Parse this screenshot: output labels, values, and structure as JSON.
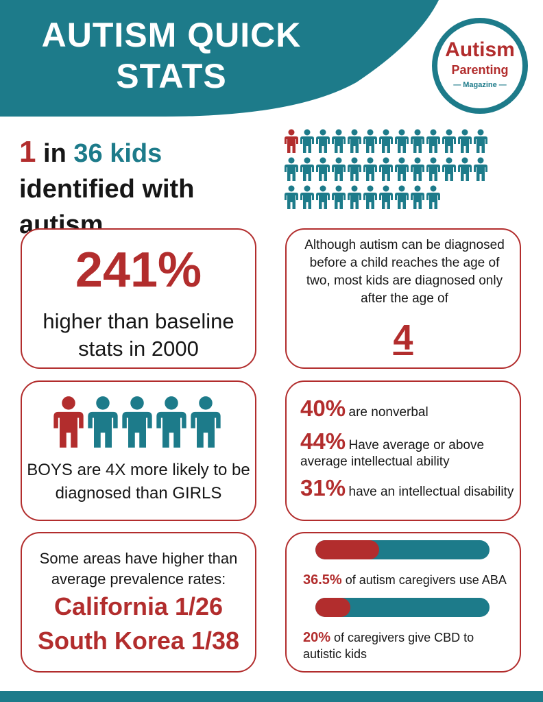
{
  "header": {
    "title_line1": "AUTISM QUICK",
    "title_line2": "STATS",
    "colors": {
      "teal": "#1d7b8a",
      "red": "#b22d2d"
    }
  },
  "logo": {
    "line1": "Autism",
    "line2": "Parenting",
    "line3": "— Magazine —"
  },
  "headline": {
    "num": "1",
    "in": " in ",
    "kids": "36 kids",
    "rest": " identified with autism"
  },
  "people_grid": {
    "total": 36,
    "highlighted": 1,
    "icon": "person-icon"
  },
  "card_baseline": {
    "percent": "241%",
    "subtitle": "higher than baseline stats in 2000"
  },
  "card_age": {
    "text": "Although autism can be diagnosed before a child reaches the age of two, most kids are diagnosed only after the age of",
    "age": "4"
  },
  "card_gender": {
    "text": "BOYS are 4X more likely to be diagnosed than GIRLS",
    "icon": "person-icon"
  },
  "card_stats": {
    "items": [
      {
        "num": "40%",
        "text": "are nonverbal"
      },
      {
        "num": "44%",
        "text": "Have average or above"
      },
      {
        "num": "",
        "text": "average intellectual ability"
      },
      {
        "num": "31%",
        "text": "have an intellectual disability"
      }
    ]
  },
  "card_regions": {
    "text": "Some areas have higher than average prevalence rates:",
    "regions": [
      "California 1/26",
      "South Korea 1/38"
    ]
  },
  "card_caregivers": {
    "bars": [
      {
        "pct": "36.5%",
        "label": " of autism caregivers use ABA",
        "fill": 0.365
      },
      {
        "pct": "20%",
        "label": " of caregivers give CBD to autistic kids",
        "fill": 0.2
      }
    ]
  }
}
